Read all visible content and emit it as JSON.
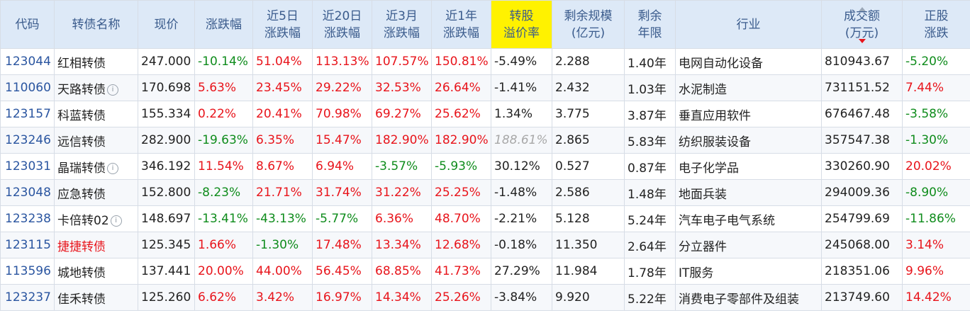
{
  "headers": [
    {
      "key": "code",
      "lines": [
        "代码"
      ]
    },
    {
      "key": "name",
      "lines": [
        "转债名称"
      ]
    },
    {
      "key": "price",
      "lines": [
        "现价"
      ]
    },
    {
      "key": "change",
      "lines": [
        "涨跌幅"
      ]
    },
    {
      "key": "chg5d",
      "lines": [
        "近5日",
        "涨跌幅"
      ]
    },
    {
      "key": "chg20d",
      "lines": [
        "近20日",
        "涨跌幅"
      ]
    },
    {
      "key": "chg3m",
      "lines": [
        "近3月",
        "涨跌幅"
      ]
    },
    {
      "key": "chg1y",
      "lines": [
        "近1年",
        "涨跌幅"
      ]
    },
    {
      "key": "premium",
      "lines": [
        "转股",
        "溢价率"
      ]
    },
    {
      "key": "scale",
      "lines": [
        "剩余规模",
        "(亿元)"
      ]
    },
    {
      "key": "years",
      "lines": [
        "剩余",
        "年限"
      ]
    },
    {
      "key": "industry",
      "lines": [
        "行业"
      ]
    },
    {
      "key": "turnover",
      "lines": [
        "成交额",
        "(万元)"
      ]
    },
    {
      "key": "stockchg",
      "lines": [
        "正股",
        "涨跌"
      ]
    }
  ],
  "rows": [
    {
      "code": "123044",
      "name": "红相转债",
      "price": "247.000",
      "change": "-10.14%",
      "chg5d": "51.04%",
      "chg20d": "113.13%",
      "chg3m": "107.57%",
      "chg1y": "150.81%",
      "premium": "-5.49%",
      "scale": "2.288",
      "years": "1.40年",
      "industry": "电网自动化设备",
      "turnover": "810943.67",
      "stockchg": "-5.20%"
    },
    {
      "code": "110060",
      "name": "天路转债",
      "price": "170.698",
      "change": "5.63%",
      "chg5d": "23.45%",
      "chg20d": "29.22%",
      "chg3m": "32.53%",
      "chg1y": "26.64%",
      "premium": "-1.41%",
      "scale": "2.432",
      "years": "1.03年",
      "industry": "水泥制造",
      "turnover": "731151.52",
      "stockchg": "7.44%"
    },
    {
      "code": "123157",
      "name": "科蓝转债",
      "price": "155.334",
      "change": "0.22%",
      "chg5d": "20.41%",
      "chg20d": "70.98%",
      "chg3m": "69.27%",
      "chg1y": "25.62%",
      "premium": "1.34%",
      "scale": "3.775",
      "years": "3.87年",
      "industry": "垂直应用软件",
      "turnover": "676467.48",
      "stockchg": "-3.58%"
    },
    {
      "code": "123246",
      "name": "远信转债",
      "price": "282.900",
      "change": "-19.63%",
      "chg5d": "6.35%",
      "chg20d": "15.47%",
      "chg3m": "182.90%",
      "chg1y": "182.90%",
      "premium": "188.61%",
      "scale": "2.865",
      "years": "5.83年",
      "industry": "纺织服装设备",
      "turnover": "357547.38",
      "stockchg": "-1.30%"
    },
    {
      "code": "123031",
      "name": "晶瑞转债",
      "price": "346.192",
      "change": "11.54%",
      "chg5d": "8.67%",
      "chg20d": "6.94%",
      "chg3m": "-3.57%",
      "chg1y": "-5.93%",
      "premium": "30.12%",
      "scale": "0.527",
      "years": "0.87年",
      "industry": "电子化学品",
      "turnover": "330260.90",
      "stockchg": "20.02%"
    },
    {
      "code": "123048",
      "name": "应急转债",
      "price": "152.800",
      "change": "-8.23%",
      "chg5d": "21.71%",
      "chg20d": "31.74%",
      "chg3m": "31.22%",
      "chg1y": "25.25%",
      "premium": "-1.48%",
      "scale": "2.586",
      "years": "1.48年",
      "industry": "地面兵装",
      "turnover": "294009.36",
      "stockchg": "-8.90%"
    },
    {
      "code": "123238",
      "name": "卡倍转02",
      "price": "148.697",
      "change": "-13.41%",
      "chg5d": "-43.13%",
      "chg20d": "-5.77%",
      "chg3m": "6.36%",
      "chg1y": "48.70%",
      "premium": "-2.21%",
      "scale": "5.128",
      "years": "5.24年",
      "industry": "汽车电子电气系统",
      "turnover": "254799.69",
      "stockchg": "-11.86%"
    },
    {
      "code": "123115",
      "name": "捷捷转债",
      "price": "125.345",
      "change": "1.66%",
      "chg5d": "-1.30%",
      "chg20d": "17.48%",
      "chg3m": "13.34%",
      "chg1y": "12.68%",
      "premium": "-0.18%",
      "scale": "11.350",
      "years": "2.64年",
      "industry": "分立器件",
      "turnover": "245068.00",
      "stockchg": "3.14%"
    },
    {
      "code": "113596",
      "name": "城地转债",
      "price": "137.441",
      "change": "20.00%",
      "chg5d": "44.00%",
      "chg20d": "56.45%",
      "chg3m": "68.85%",
      "chg1y": "41.73%",
      "premium": "27.29%",
      "scale": "11.984",
      "years": "1.78年",
      "industry": "IT服务",
      "turnover": "218351.06",
      "stockchg": "9.96%"
    },
    {
      "code": "123237",
      "name": "佳禾转债",
      "price": "125.260",
      "change": "6.62%",
      "chg5d": "3.42%",
      "chg20d": "16.97%",
      "chg3m": "14.34%",
      "chg1y": "25.26%",
      "premium": "-3.84%",
      "scale": "9.920",
      "years": "5.22年",
      "industry": "消费电子零部件及组装",
      "turnover": "213749.60",
      "stockchg": "14.42%"
    }
  ],
  "info_names": [
    "天路转债",
    "晶瑞转债",
    "卡倍转02"
  ],
  "red_names": [
    "捷捷转债"
  ],
  "muted_premium_codes": [
    "123246"
  ],
  "info_icon_glyph": "i",
  "colors": {
    "up": "#e8141b",
    "down": "#0f8c1c",
    "header_bg": "#dde9f7",
    "highlight": "#fff200",
    "code": "#2a55a0"
  }
}
